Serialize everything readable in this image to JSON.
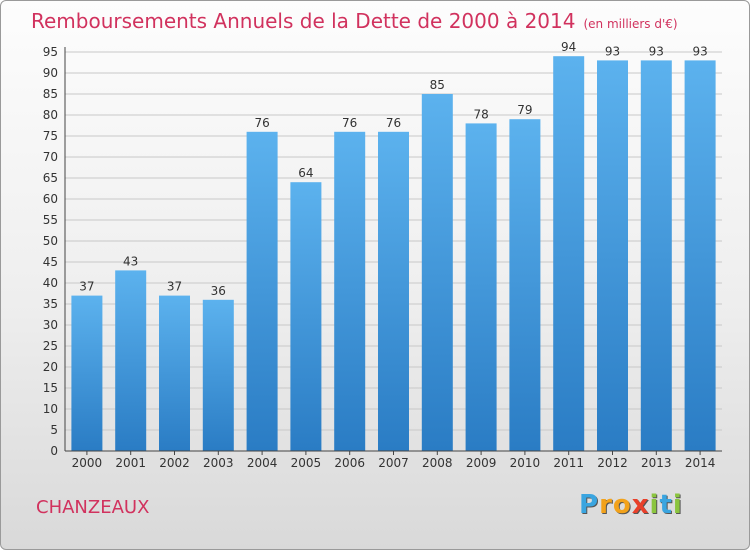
{
  "chart_data": {
    "type": "bar",
    "title": "Remboursements Annuels de la Dette de 2000 à 2014",
    "subtitle": "(en milliers d'€)",
    "categories": [
      "2000",
      "2001",
      "2002",
      "2003",
      "2004",
      "2005",
      "2006",
      "2007",
      "2008",
      "2009",
      "2010",
      "2011",
      "2012",
      "2013",
      "2014"
    ],
    "values": [
      37,
      43,
      37,
      36,
      76,
      64,
      76,
      76,
      85,
      78,
      79,
      94,
      93,
      93,
      93
    ],
    "ylim": [
      0,
      95
    ],
    "yticks": [
      0,
      5,
      10,
      15,
      20,
      25,
      30,
      35,
      40,
      45,
      50,
      55,
      60,
      65,
      70,
      75,
      80,
      85,
      90,
      95
    ],
    "grid": true,
    "bar_color": "#3a8fd6",
    "xlabel": "",
    "ylabel": ""
  },
  "place": "CHANZEAUX",
  "logo": {
    "text": "Proxiti",
    "letters": [
      {
        "ch": "P",
        "color": "#3aa5e0"
      },
      {
        "ch": "r",
        "color": "#f2a21b"
      },
      {
        "ch": "o",
        "color": "#f2a21b"
      },
      {
        "ch": "x",
        "color": "#e8402a"
      },
      {
        "ch": "i",
        "color": "#8bc53f"
      },
      {
        "ch": "t",
        "color": "#3aa5e0"
      },
      {
        "ch": "i",
        "color": "#8bc53f"
      }
    ]
  },
  "colors": {
    "title": "#d1325e",
    "grid": "#c8c8c8",
    "bar_light": "#5cb2ee",
    "bar_dark": "#2a7cc4"
  }
}
